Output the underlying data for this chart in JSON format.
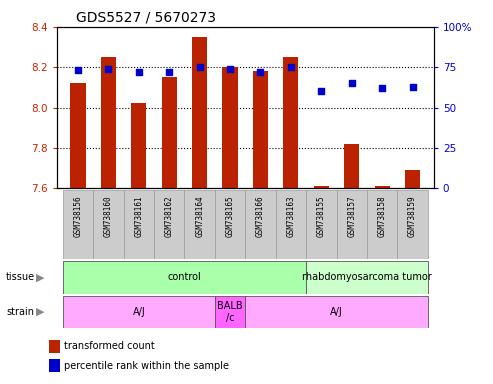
{
  "title": "GDS5527 / 5670273",
  "samples": [
    "GSM738156",
    "GSM738160",
    "GSM738161",
    "GSM738162",
    "GSM738164",
    "GSM738165",
    "GSM738166",
    "GSM738163",
    "GSM738155",
    "GSM738157",
    "GSM738158",
    "GSM738159"
  ],
  "transformed_count": [
    8.12,
    8.25,
    8.02,
    8.15,
    8.35,
    8.2,
    8.18,
    8.25,
    7.61,
    7.82,
    7.61,
    7.69
  ],
  "percentile_rank": [
    73,
    74,
    72,
    72,
    75,
    74,
    72,
    75,
    60,
    65,
    62,
    63
  ],
  "ylim_left": [
    7.6,
    8.4
  ],
  "ylim_right": [
    0,
    100
  ],
  "yticks_left": [
    7.6,
    7.8,
    8.0,
    8.2,
    8.4
  ],
  "yticks_right": [
    0,
    25,
    50,
    75,
    100
  ],
  "bar_color": "#bb2200",
  "dot_color": "#0000cc",
  "tissue_groups": [
    {
      "label": "control",
      "start": 0,
      "end": 8,
      "color": "#aaffaa"
    },
    {
      "label": "rhabdomyosarcoma tumor",
      "start": 8,
      "end": 12,
      "color": "#ccffcc"
    }
  ],
  "strain_groups": [
    {
      "label": "A/J",
      "start": 0,
      "end": 5,
      "color": "#ffaaff"
    },
    {
      "label": "BALB\n/c",
      "start": 5,
      "end": 6,
      "color": "#ff66ff"
    },
    {
      "label": "A/J",
      "start": 6,
      "end": 12,
      "color": "#ffaaff"
    }
  ],
  "legend_bar_color": "#bb2200",
  "legend_dot_color": "#0000cc",
  "bar_width": 0.5,
  "background_color": "#ffffff",
  "tick_label_color_left": "#cc2200",
  "tick_label_color_right": "#0000cc",
  "title_fontsize": 10,
  "sample_box_color": "#cccccc",
  "left_label_color": "#888888"
}
